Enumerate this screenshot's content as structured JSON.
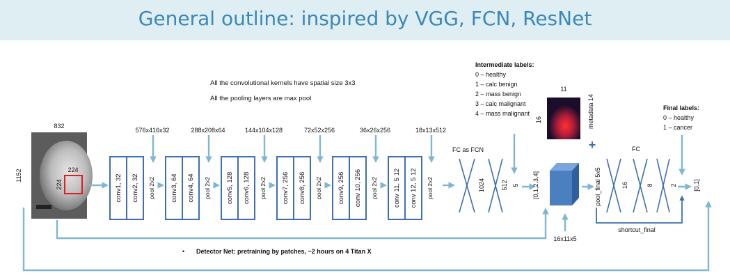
{
  "title": "General outline: inspired by VGG, FCN, ResNet",
  "notes": {
    "kernels": "All the convolutional kernels have spatial size 3x3",
    "pooling": "All the pooling layers are max pool",
    "bullet": "Detector Net: pretraining by patches, ~2 hours on 4 Titan X"
  },
  "input": {
    "width": "832",
    "height": "1152",
    "patch_w": "224",
    "patch_h": "224"
  },
  "conv_blocks": [
    {
      "size": "576x416x32",
      "layers": [
        "conv1, 32",
        "conv2, 32"
      ],
      "pool": "pool 2x2"
    },
    {
      "size": "288x208x64",
      "layers": [
        "conv3, 64",
        "conv4, 64"
      ],
      "pool": "pool 2x2"
    },
    {
      "size": "144x104x128",
      "layers": [
        "conv5, 128",
        "conv6, 128"
      ],
      "pool": "pool 2x2"
    },
    {
      "size": "72x52x256",
      "layers": [
        "conv7, 256",
        "conv8, 256"
      ],
      "pool": "pool 2x2"
    },
    {
      "size": "36x26x256",
      "layers": [
        "conv9, 256",
        "conv 10, 256"
      ],
      "pool": "pool 2x2"
    },
    {
      "size": "18x13x512",
      "layers": [
        "conv 11, 5 12",
        "conv 12, 5 12"
      ],
      "pool": "pool 2x2"
    }
  ],
  "fcn": {
    "label": "FC as FCN",
    "units": [
      "1024",
      "512",
      "5"
    ],
    "output": "[0,1,2,3,4]"
  },
  "intermediate_labels": {
    "title": "Intermediate labels:",
    "items": [
      "0 – healthy",
      "1 – calc benign",
      "2 – mass benign",
      "3 – calc malignant",
      "4 – mass malignant"
    ]
  },
  "heatmap": {
    "width": "11",
    "height": "16",
    "metadata": "metadata 14"
  },
  "plus": "+",
  "volume": {
    "label": "16x11x5"
  },
  "final": {
    "pool": "pool_final 5x5",
    "fc_label": "FC",
    "units": [
      "16",
      "8",
      "2"
    ],
    "output": "[0,1]",
    "shortcut": "shortcut_final",
    "labels_title": "Final labels:",
    "labels": [
      "0 – healthy",
      "1 – cancer"
    ]
  },
  "colors": {
    "title": "#3b87b8",
    "title_bar": "#dfeef2",
    "boxes": "#3e6fb0",
    "arrows": "#7fb6d0",
    "cube": "#4a7fc0"
  }
}
